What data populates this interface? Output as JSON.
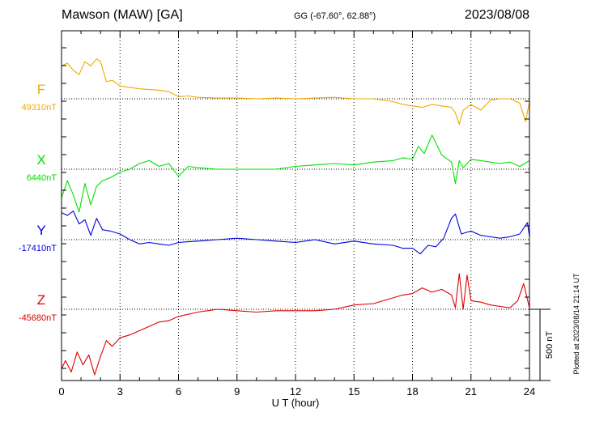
{
  "header": {
    "title": "Mawson (MAW)  [GA]",
    "coords": "GG (-67.60°,  62.88°)",
    "date": "2023/08/08"
  },
  "side_note": "Plotted at 2023/08/14 21:14 UT",
  "scale_label": "500 nT",
  "colors": {
    "F": "#f0a800",
    "X": "#00e000",
    "Y": "#0000e0",
    "Z": "#e00000",
    "frame": "#000000",
    "grid": "#000000"
  },
  "chart_data": {
    "type": "line",
    "title": "Mawson (MAW)  [GA]",
    "xlabel": "U T (hour)",
    "ylabel": "",
    "xlim": [
      0,
      24
    ],
    "x_ticks": [
      0,
      3,
      6,
      9,
      12,
      15,
      18,
      21,
      24
    ],
    "x_tick_labels": [
      "0",
      "3",
      "6",
      "9",
      "12",
      "15",
      "18",
      "21",
      "24"
    ],
    "grid": true,
    "scale_bar_nT": 500,
    "units": "nT",
    "series": [
      {
        "name": "F",
        "baseline_label": "49310nT",
        "baseline_nT": 49310,
        "x": [
          0,
          0.3,
          0.6,
          0.9,
          1.2,
          1.5,
          1.8,
          2.0,
          2.3,
          2.6,
          3.0,
          3.5,
          4.0,
          4.5,
          5.0,
          5.5,
          6.0,
          6.5,
          7.0,
          8.0,
          9.0,
          10.0,
          11.0,
          12.0,
          13.0,
          14.0,
          15.0,
          16.0,
          17.0,
          17.5,
          18.0,
          18.5,
          19.0,
          19.5,
          20.0,
          20.2,
          20.4,
          20.6,
          21.0,
          21.5,
          22.0,
          22.5,
          23.0,
          23.5,
          23.8,
          24.0
        ],
        "values": [
          230,
          250,
          200,
          170,
          260,
          230,
          280,
          260,
          120,
          130,
          90,
          80,
          70,
          65,
          60,
          50,
          15,
          20,
          10,
          5,
          5,
          0,
          5,
          0,
          5,
          10,
          0,
          0,
          -20,
          -40,
          -50,
          -60,
          -40,
          -50,
          -60,
          -100,
          -180,
          -80,
          -40,
          -80,
          -10,
          0,
          0,
          -30,
          -160,
          -20
        ]
      },
      {
        "name": "X",
        "baseline_label": "6440nT",
        "baseline_nT": 6440,
        "x": [
          0,
          0.3,
          0.6,
          0.9,
          1.2,
          1.5,
          1.8,
          2.1,
          2.5,
          3.0,
          3.5,
          4.0,
          4.5,
          5.0,
          5.5,
          6.0,
          6.5,
          7.0,
          8.0,
          9.0,
          10.0,
          11.0,
          12.0,
          13.0,
          14.0,
          15.0,
          16.0,
          17.0,
          17.5,
          18.0,
          18.3,
          18.6,
          19.0,
          19.5,
          20.0,
          20.2,
          20.4,
          20.6,
          21.0,
          21.5,
          22.0,
          22.5,
          23.0,
          23.5,
          24.0
        ],
        "values": [
          -200,
          -80,
          -180,
          -300,
          -100,
          -250,
          -120,
          -80,
          -60,
          -20,
          0,
          40,
          60,
          20,
          40,
          -50,
          20,
          10,
          0,
          0,
          0,
          0,
          20,
          30,
          40,
          30,
          50,
          60,
          80,
          70,
          160,
          110,
          240,
          100,
          50,
          -100,
          60,
          10,
          70,
          60,
          50,
          40,
          50,
          20,
          60
        ]
      },
      {
        "name": "Y",
        "baseline_label": "-17410nT",
        "baseline_nT": -17410,
        "x": [
          0,
          0.3,
          0.6,
          0.9,
          1.2,
          1.5,
          1.8,
          2.1,
          2.5,
          3.0,
          3.5,
          4.0,
          4.5,
          5.0,
          5.5,
          6.0,
          6.5,
          7.0,
          8.0,
          9.0,
          10.0,
          11.0,
          12.0,
          13.0,
          14.0,
          15.0,
          16.0,
          17.0,
          17.5,
          18.0,
          18.4,
          18.8,
          19.2,
          19.6,
          20.0,
          20.2,
          20.5,
          21.0,
          21.5,
          22.0,
          22.5,
          23.0,
          23.5,
          23.9,
          24.0
        ],
        "values": [
          190,
          170,
          200,
          110,
          140,
          30,
          150,
          70,
          60,
          40,
          0,
          -30,
          -20,
          -30,
          -40,
          -20,
          -15,
          -10,
          0,
          10,
          0,
          -10,
          -20,
          0,
          -30,
          -10,
          -30,
          -40,
          -60,
          -60,
          -100,
          -40,
          -50,
          10,
          150,
          180,
          40,
          60,
          30,
          20,
          10,
          20,
          40,
          120,
          20
        ]
      },
      {
        "name": "Z",
        "baseline_label": "-45680nT",
        "baseline_nT": -45680,
        "x": [
          0,
          0.2,
          0.5,
          0.8,
          1.1,
          1.4,
          1.7,
          2.0,
          2.3,
          2.6,
          3.0,
          3.5,
          4.0,
          4.5,
          5.0,
          5.5,
          6.0,
          7.0,
          8.0,
          9.0,
          10.0,
          11.0,
          12.0,
          13.0,
          14.0,
          15.0,
          16.0,
          17.0,
          17.5,
          18.0,
          18.5,
          19.0,
          19.5,
          20.0,
          20.2,
          20.4,
          20.6,
          20.8,
          21.0,
          21.5,
          22.0,
          22.5,
          23.0,
          23.4,
          23.7,
          24.0
        ],
        "values": [
          -420,
          -360,
          -440,
          -300,
          -390,
          -320,
          -460,
          -330,
          -220,
          -260,
          -200,
          -180,
          -150,
          -120,
          -90,
          -80,
          -50,
          -20,
          0,
          -10,
          -20,
          -10,
          -10,
          -10,
          0,
          30,
          40,
          80,
          100,
          110,
          150,
          120,
          140,
          100,
          10,
          250,
          0,
          240,
          60,
          50,
          30,
          20,
          10,
          60,
          180,
          10
        ]
      }
    ]
  }
}
